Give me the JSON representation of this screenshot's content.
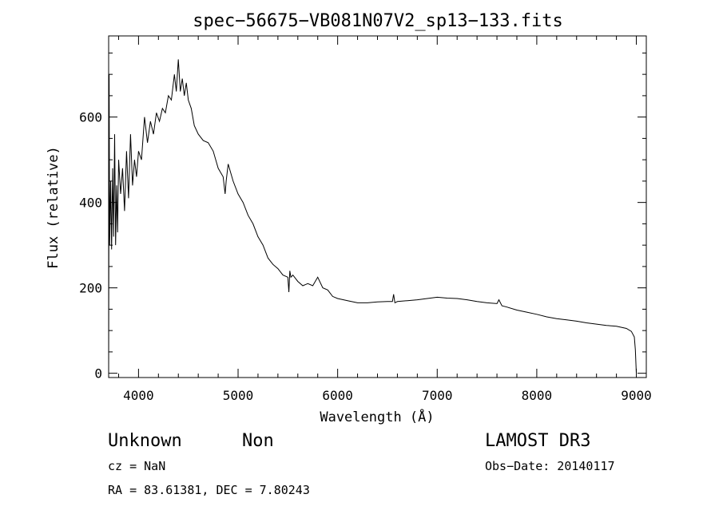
{
  "chart_data": {
    "type": "line",
    "title": "spec−56675−VB081N07V2_sp13−133.fits",
    "xlabel": "Wavelength (Å)",
    "ylabel": "Flux (relative)",
    "xlim": [
      3700,
      9100
    ],
    "ylim": [
      -10,
      790
    ],
    "x_ticks": [
      4000,
      5000,
      6000,
      7000,
      8000,
      9000
    ],
    "y_ticks": [
      0,
      200,
      400,
      600
    ],
    "grid": false,
    "legend": "none",
    "series": [
      {
        "x": [
          3700,
          3705,
          3710,
          3720,
          3730,
          3740,
          3750,
          3760,
          3770,
          3780,
          3790,
          3800,
          3820,
          3840,
          3860,
          3880,
          3900,
          3920,
          3940,
          3960,
          3980,
          4000,
          4030,
          4060,
          4090,
          4120,
          4150,
          4180,
          4210,
          4240,
          4270,
          4300,
          4330,
          4360,
          4380,
          4400,
          4420,
          4440,
          4460,
          4480,
          4500,
          4530,
          4560,
          4600,
          4650,
          4700,
          4750,
          4800,
          4850,
          4870,
          4880,
          4900,
          4950,
          5000,
          5050,
          5100,
          5150,
          5200,
          5250,
          5300,
          5350,
          5400,
          5450,
          5500,
          5510,
          5520,
          5530,
          5550,
          5600,
          5650,
          5700,
          5750,
          5800,
          5850,
          5900,
          5950,
          6000,
          6100,
          6200,
          6300,
          6400,
          6500,
          6550,
          6562,
          6575,
          6600,
          6700,
          6800,
          6900,
          7000,
          7100,
          7200,
          7300,
          7400,
          7500,
          7600,
          7620,
          7650,
          7700,
          7800,
          7900,
          8000,
          8100,
          8200,
          8300,
          8400,
          8500,
          8600,
          8700,
          8800,
          8900,
          8950,
          8980,
          8990,
          9000
        ],
        "y": [
          0,
          700,
          300,
          450,
          290,
          480,
          320,
          560,
          300,
          440,
          330,
          500,
          420,
          480,
          380,
          520,
          410,
          560,
          440,
          500,
          460,
          520,
          500,
          600,
          540,
          590,
          560,
          610,
          590,
          620,
          610,
          650,
          640,
          700,
          660,
          735,
          660,
          690,
          650,
          680,
          640,
          620,
          580,
          560,
          545,
          540,
          520,
          480,
          460,
          420,
          450,
          490,
          450,
          420,
          400,
          370,
          350,
          320,
          300,
          270,
          255,
          245,
          230,
          225,
          190,
          240,
          225,
          230,
          215,
          205,
          210,
          205,
          225,
          200,
          195,
          180,
          175,
          170,
          165,
          165,
          167,
          168,
          168,
          185,
          165,
          168,
          170,
          172,
          175,
          178,
          176,
          175,
          172,
          168,
          165,
          163,
          172,
          158,
          155,
          148,
          143,
          138,
          132,
          128,
          125,
          122,
          118,
          115,
          112,
          110,
          105,
          98,
          85,
          55,
          0
        ]
      }
    ]
  },
  "info": {
    "object_class": "Unknown",
    "subclass": "Non",
    "survey": "LAMOST DR3",
    "cz": "cz = NaN",
    "obs_date": "Obs−Date: 20140117",
    "coords": "RA =  83.61381, DEC =   7.80243"
  }
}
